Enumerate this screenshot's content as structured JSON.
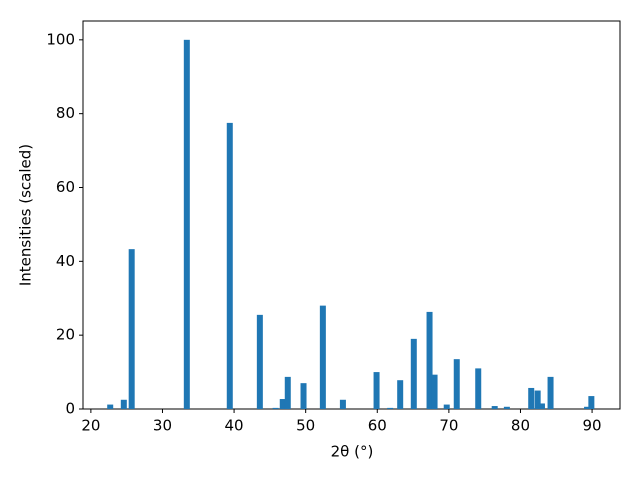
{
  "chart_data": {
    "type": "bar",
    "xlabel": "2θ (°)",
    "ylabel": "Intensities (scaled)",
    "x": [
      22.7,
      24.6,
      25.7,
      33.4,
      39.4,
      43.6,
      45.8,
      46.8,
      47.5,
      49.7,
      52.4,
      55.2,
      59.9,
      61.8,
      63.2,
      65.1,
      67.3,
      68.0,
      69.7,
      71.1,
      74.1,
      76.4,
      78.1,
      81.5,
      82.4,
      83.0,
      84.2,
      89.3,
      89.9
    ],
    "values": [
      1.2,
      2.5,
      43.3,
      100,
      77.5,
      25.5,
      0.3,
      2.7,
      8.7,
      7,
      28,
      2.5,
      10,
      0.3,
      7.8,
      19,
      26.3,
      9.3,
      1.2,
      13.5,
      11,
      0.8,
      0.6,
      5.7,
      5,
      1.5,
      8.7,
      0.6,
      3.5
    ],
    "color": "#1f77b4",
    "xlim": [
      18.9,
      93.9
    ],
    "xticks": [
      20,
      30,
      40,
      50,
      60,
      70,
      80,
      90
    ],
    "ylim": [
      0,
      105.1
    ],
    "yticks": [
      0,
      20,
      40,
      60,
      80,
      100
    ],
    "grid": false
  }
}
